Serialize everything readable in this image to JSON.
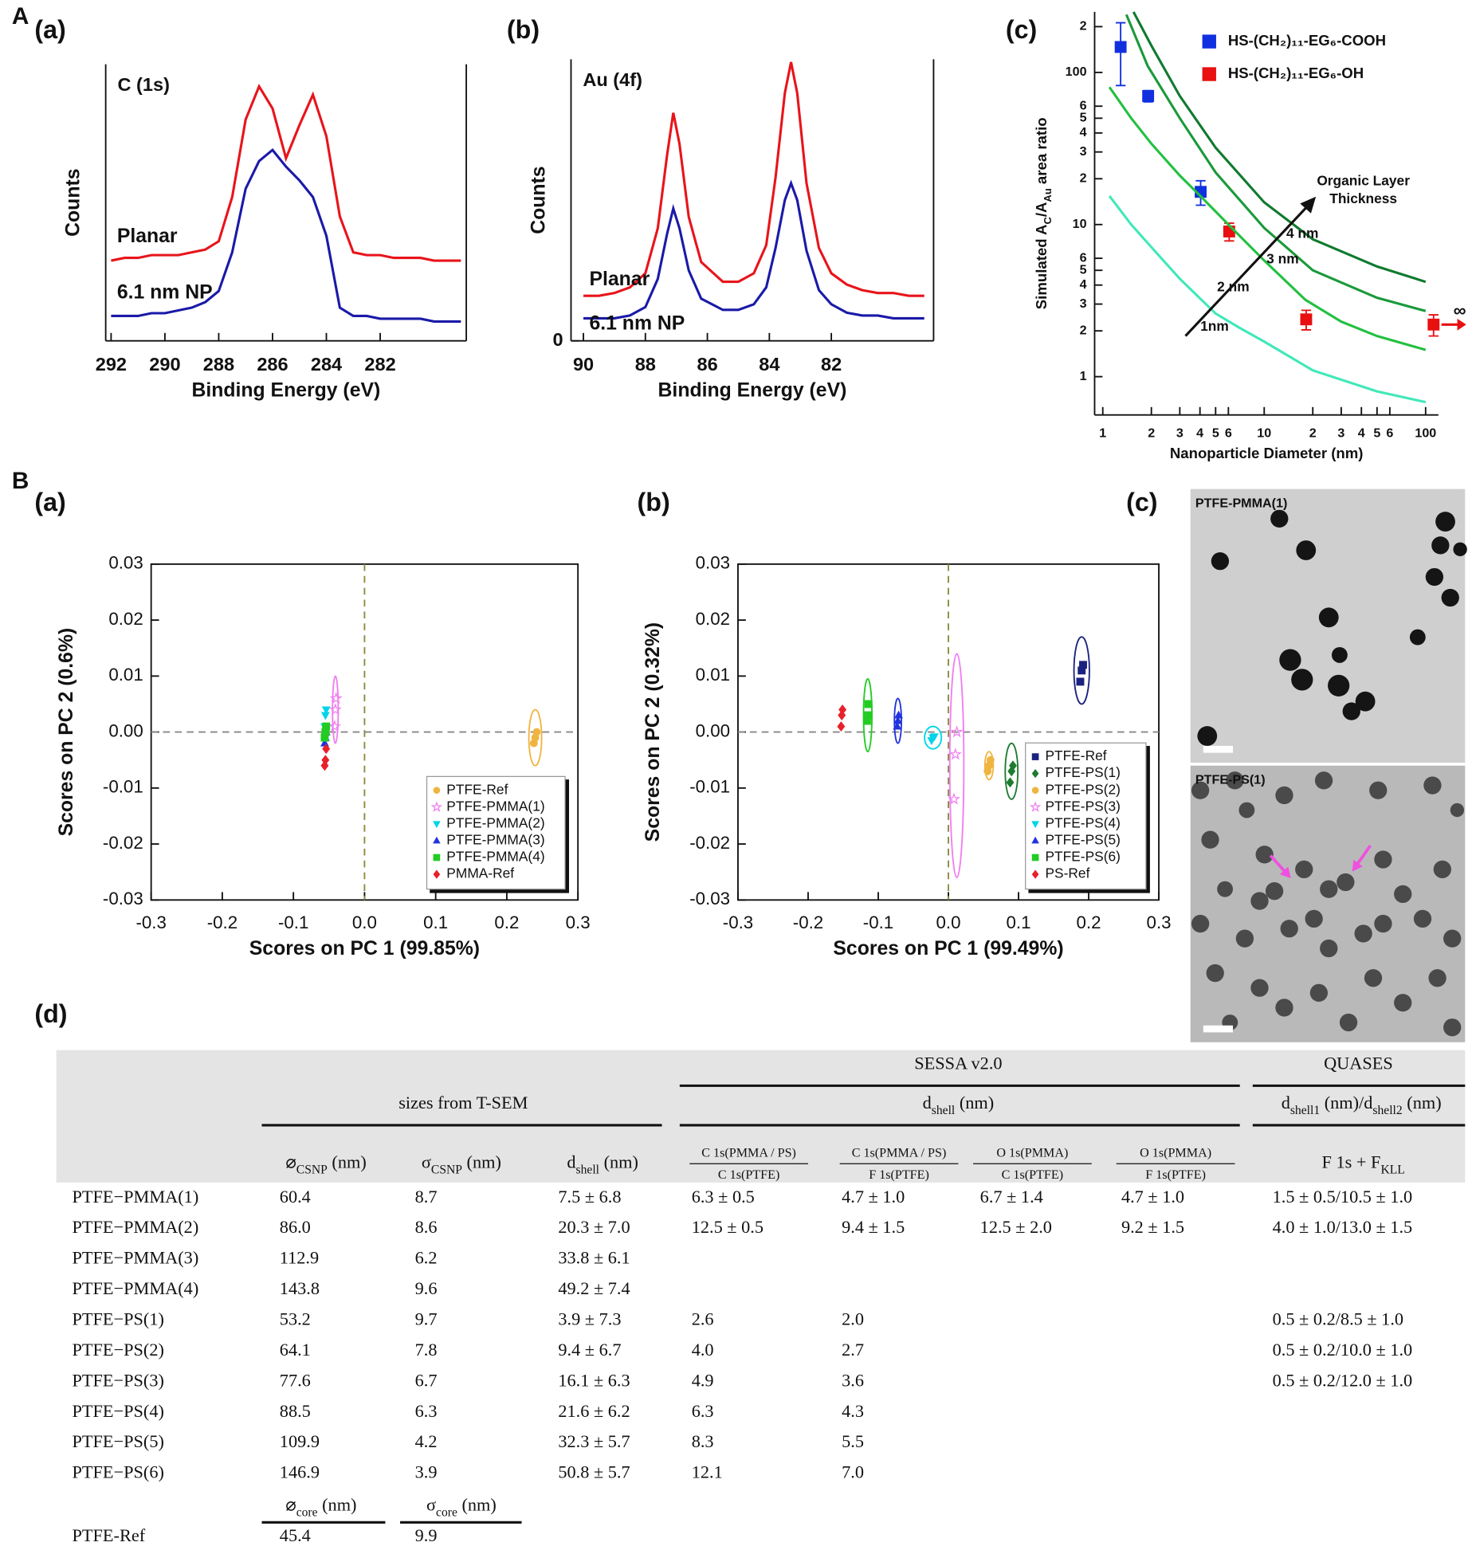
{
  "panel_labels": [
    "A",
    "(a)",
    "(b)",
    "(c)",
    "B",
    "(a)",
    "(b)",
    "(c)",
    "(d)"
  ],
  "chart_data": [
    {
      "type": "line",
      "title": "C (1s)",
      "xlabel": "Binding Energy (eV)",
      "ylabel": "Counts",
      "xlim": [
        292.2,
        278.8
      ],
      "xticks": [
        292,
        290,
        288,
        286,
        284,
        282
      ],
      "ylim": [
        0,
        100
      ],
      "legend": "inline",
      "series": [
        {
          "name": "Planar",
          "color": "#e8141b",
          "x": [
            292,
            291.5,
            291,
            290.5,
            290,
            289.5,
            289,
            288.5,
            288,
            287.5,
            287,
            286.5,
            286,
            285.5,
            285,
            284.5,
            284,
            283.5,
            283,
            282.5,
            282,
            281.5,
            281,
            280.5,
            280,
            279.5,
            279
          ],
          "values": [
            29,
            30,
            30,
            31,
            31,
            31,
            32,
            33,
            36,
            52,
            80,
            92,
            84,
            66,
            78,
            89,
            74,
            45,
            32,
            31,
            31,
            30,
            30,
            30,
            29,
            29,
            29
          ]
        },
        {
          "name": "6.1 nm NP",
          "color": "#1a1aa8",
          "x": [
            292,
            291.5,
            291,
            290.5,
            290,
            289.5,
            289,
            288.5,
            288,
            287.5,
            287,
            286.5,
            286,
            285.5,
            285,
            284.5,
            284,
            283.5,
            283,
            282.5,
            282,
            281.5,
            281,
            280.5,
            280,
            279.5,
            279
          ],
          "values": [
            9,
            9,
            9,
            10,
            10,
            11,
            12,
            14,
            18,
            32,
            55,
            65,
            69,
            63,
            58,
            52,
            38,
            12,
            9,
            9,
            8,
            8,
            8,
            8,
            7,
            7,
            7
          ]
        }
      ]
    },
    {
      "type": "line",
      "title": "Au (4f)",
      "xlabel": "Binding Energy (eV)",
      "ylabel": "Counts",
      "xlim": [
        90.4,
        78.7
      ],
      "xticks": [
        90,
        88,
        86,
        84,
        82
      ],
      "ylim": [
        0,
        100
      ],
      "yticks": [
        0
      ],
      "legend": "inline",
      "series": [
        {
          "name": "Planar",
          "color": "#e8141b",
          "x": [
            90,
            89.5,
            89,
            88.5,
            88,
            87.6,
            87.3,
            87.1,
            86.9,
            86.6,
            86.2,
            85.5,
            85,
            84.5,
            84.1,
            83.8,
            83.5,
            83.3,
            83.1,
            82.8,
            82.4,
            82,
            81.5,
            81,
            80.5,
            80,
            79.5,
            79
          ],
          "values": [
            16,
            16,
            17,
            19,
            24,
            40,
            66,
            81,
            70,
            44,
            28,
            21,
            21,
            24,
            34,
            58,
            88,
            99,
            88,
            56,
            33,
            24,
            20,
            18,
            17,
            17,
            16,
            16
          ]
        },
        {
          "name": "6.1 nm NP",
          "color": "#1a1aa8",
          "x": [
            90,
            89.5,
            89,
            88.5,
            88,
            87.6,
            87.3,
            87.1,
            86.9,
            86.6,
            86.2,
            85.5,
            85,
            84.5,
            84.1,
            83.8,
            83.5,
            83.3,
            83.1,
            82.8,
            82.4,
            82,
            81.5,
            81,
            80.5,
            80,
            79.5,
            79
          ],
          "values": [
            8,
            8,
            8,
            9,
            12,
            22,
            38,
            47,
            40,
            25,
            15,
            11,
            11,
            13,
            19,
            33,
            50,
            56,
            50,
            32,
            18,
            13,
            10,
            9,
            9,
            8,
            8,
            8
          ]
        }
      ]
    },
    {
      "type": "scatter",
      "xscale": "log",
      "yscale": "log",
      "xlabel": "Nanoparticle Diameter (nm)",
      "ylabel": [
        "Simulated A",
        "C",
        "/A",
        "Au",
        " area ratio"
      ],
      "xlim": [
        0.89,
        120
      ],
      "xticks": [
        1,
        2,
        3,
        4,
        5,
        6,
        10,
        {
          "value": 20,
          "label": "2"
        },
        {
          "value": 30,
          "label": "3"
        },
        {
          "value": 40,
          "label": "4"
        },
        {
          "value": 50,
          "label": "5"
        },
        {
          "value": 60,
          "label": "6"
        },
        100
      ],
      "ylim": [
        0.56,
        250
      ],
      "yticks": [
        1,
        2,
        3,
        4,
        5,
        6,
        10,
        {
          "value": 20,
          "label": "2"
        },
        {
          "value": 30,
          "label": "3"
        },
        {
          "value": 40,
          "label": "4"
        },
        {
          "value": 50,
          "label": "5"
        },
        {
          "value": 60,
          "label": "6"
        },
        100,
        {
          "value": 200,
          "label": "2"
        }
      ],
      "legend": "upper center",
      "annotation_lines": [
        "Organic Layer",
        "Thickness"
      ],
      "infinity_note": "∞",
      "series": [
        {
          "name": "HS-(CH₂)₁₁-EG₆-COOH",
          "color": "#1030e0",
          "mark": "square",
          "x": [
            1.29,
            1.91,
            4.04
          ],
          "values": [
            147,
            70,
            16.4
          ],
          "errors": [
            65,
            6,
            3
          ]
        },
        {
          "name": "HS-(CH₂)₁₁-EG₆-OH",
          "color": "#e81010",
          "mark": "square",
          "x": [
            6.07,
            18.2,
            112
          ],
          "values": [
            9.0,
            2.38,
            2.2
          ],
          "errors": [
            1.2,
            0.35,
            0.35
          ]
        },
        {
          "name": "1nm",
          "color": "#40e8b8",
          "mark": "line",
          "x": [
            1.1,
            1.5,
            2,
            3,
            5,
            7,
            10,
            20,
            50,
            100
          ],
          "values": [
            15.4,
            10,
            7.1,
            4.4,
            2.6,
            2.1,
            1.7,
            1.1,
            0.8,
            0.68
          ]
        },
        {
          "name": "2 nm",
          "color": "#22c040",
          "mark": "line",
          "x": [
            1.1,
            1.5,
            2,
            3,
            4,
            6,
            10,
            18,
            30,
            50,
            100
          ],
          "values": [
            80,
            50,
            34,
            21,
            15.5,
            10,
            5.8,
            3.2,
            2.3,
            1.85,
            1.5
          ]
        },
        {
          "name": "3 nm",
          "color": "#1a9a3a",
          "mark": "line",
          "x": [
            1.4,
            1.9,
            3,
            5,
            10,
            20,
            50,
            100
          ],
          "values": [
            240,
            110,
            50,
            22,
            9.5,
            5,
            3.3,
            2.7
          ]
        },
        {
          "name": "4 nm",
          "color": "#0f7a2e",
          "mark": "line",
          "x": [
            1.55,
            2,
            3,
            5,
            10,
            20,
            50,
            100
          ],
          "values": [
            250,
            150,
            70,
            32,
            14,
            8,
            5.3,
            4.2
          ]
        }
      ]
    },
    {
      "type": "scatter",
      "xlabel": "Scores on PC 1 (99.85%)",
      "ylabel": "Scores on PC 2 (0.6%)",
      "xlim": [
        -0.3,
        0.3
      ],
      "xticks": [
        -0.3,
        -0.2,
        -0.1,
        {
          "value": 0,
          "label": "0.0"
        },
        0.1,
        0.2,
        0.3
      ],
      "ylim": [
        -0.03,
        0.03
      ],
      "yticks": [
        -0.03,
        -0.02,
        -0.01,
        {
          "value": 0,
          "label": "0.00"
        },
        0.01,
        0.02,
        0.03
      ],
      "zero_lines": true,
      "legend": "lower right",
      "series": [
        {
          "name": "PTFE-Ref",
          "color": "#f0b540",
          "mark": "circle",
          "x": [
            0.238,
            0.24,
            0.242
          ],
          "values": [
            -0.002,
            -0.001,
            0.0
          ],
          "ellipse": [
            0.24,
            -0.001,
            0.009,
            0.005
          ]
        },
        {
          "name": "PTFE-PMMA(1)",
          "color": "#f07ef0",
          "mark": "star",
          "x": [
            -0.042,
            -0.041,
            -0.04
          ],
          "values": [
            0.001,
            0.004,
            0.006
          ],
          "ellipse": [
            -0.041,
            0.004,
            0.004,
            0.006
          ]
        },
        {
          "name": "PTFE-PMMA(2)",
          "color": "#00d4e8",
          "mark": "tri-down",
          "x": [
            -0.056,
            -0.055,
            -0.054
          ],
          "values": [
            0.001,
            0.003,
            0.004
          ]
        },
        {
          "name": "PTFE-PMMA(3)",
          "color": "#2233dd",
          "mark": "tri-up",
          "x": [
            -0.056,
            -0.055,
            -0.054
          ],
          "values": [
            -0.002,
            -0.001,
            0.0
          ]
        },
        {
          "name": "PTFE-PMMA(4)",
          "color": "#22cc22",
          "mark": "square",
          "x": [
            -0.056,
            -0.055,
            -0.054
          ],
          "values": [
            -0.001,
            0.0,
            0.001
          ]
        },
        {
          "name": "PMMA-Ref",
          "color": "#e8202a",
          "mark": "diamond",
          "x": [
            -0.056,
            -0.055,
            -0.054
          ],
          "values": [
            -0.006,
            -0.005,
            -0.003
          ]
        }
      ]
    },
    {
      "type": "scatter",
      "xlabel": "Scores on PC 1 (99.49%)",
      "ylabel": "Scores on PC 2 (0.32%)",
      "xlim": [
        -0.3,
        0.3
      ],
      "xticks": [
        -0.3,
        -0.2,
        -0.1,
        {
          "value": 0,
          "label": "0.0"
        },
        0.1,
        0.2,
        0.3
      ],
      "ylim": [
        -0.03,
        0.03
      ],
      "yticks": [
        -0.03,
        -0.02,
        -0.01,
        {
          "value": 0,
          "label": "0.00"
        },
        0.01,
        0.02,
        0.03
      ],
      "zero_lines": true,
      "legend": "lower right",
      "series": [
        {
          "name": "PTFE-Ref",
          "color": "#1a237e",
          "mark": "square",
          "x": [
            0.188,
            0.19,
            0.192
          ],
          "values": [
            0.009,
            0.011,
            0.012
          ],
          "ellipse": [
            0.19,
            0.011,
            0.011,
            0.006
          ]
        },
        {
          "name": "PTFE-PS(1)",
          "color": "#1e7b30",
          "mark": "diamond",
          "x": [
            0.088,
            0.09,
            0.092
          ],
          "values": [
            -0.009,
            -0.007,
            -0.006
          ],
          "ellipse": [
            0.09,
            -0.007,
            0.009,
            0.005
          ]
        },
        {
          "name": "PTFE-PS(2)",
          "color": "#f0b540",
          "mark": "circle",
          "x": [
            0.056,
            0.058,
            0.06
          ],
          "values": [
            -0.007,
            -0.006,
            -0.005
          ],
          "ellipse": [
            0.058,
            -0.006,
            0.006,
            0.0025
          ]
        },
        {
          "name": "PTFE-PS(3)",
          "color": "#f07ef0",
          "mark": "star",
          "x": [
            0.008,
            0.01,
            0.012
          ],
          "values": [
            -0.012,
            -0.004,
            0.0
          ],
          "ellipse": [
            0.012,
            -0.006,
            0.01,
            0.02
          ]
        },
        {
          "name": "PTFE-PS(4)",
          "color": "#00d4e8",
          "mark": "tri-down",
          "x": [
            -0.024,
            -0.022,
            -0.02
          ],
          "values": [
            -0.0015,
            -0.001,
            -0.0008
          ],
          "ellipse": [
            -0.022,
            -0.001,
            0.012,
            0.002
          ]
        },
        {
          "name": "PTFE-PS(5)",
          "color": "#2233dd",
          "mark": "tri-up",
          "x": [
            -0.073,
            -0.072,
            -0.071
          ],
          "values": [
            0.001,
            0.002,
            0.003
          ],
          "ellipse": [
            -0.072,
            0.002,
            0.005,
            0.004
          ]
        },
        {
          "name": "PTFE-PS(6)",
          "color": "#22cc22",
          "mark": "square",
          "x": [
            -0.116,
            -0.115,
            -0.114
          ],
          "values": [
            0.002,
            0.003,
            0.005
          ],
          "ellipse": [
            -0.115,
            0.003,
            0.006,
            0.0065
          ]
        },
        {
          "name": "PS-Ref",
          "color": "#e8202a",
          "mark": "diamond",
          "x": [
            -0.153,
            -0.152,
            -0.151
          ],
          "values": [
            0.001,
            0.003,
            0.004
          ]
        }
      ]
    }
  ],
  "images": [
    {
      "label": "PTFE-PMMA(1)"
    },
    {
      "label": "PTFE-PS(1)"
    }
  ],
  "table": {
    "groups": [
      "SESSA v2.0",
      "QUASES"
    ],
    "subgroups": [
      "sizes from T-SEM",
      [
        "d",
        "shell",
        " (nm)"
      ],
      [
        "d",
        "shell1",
        " (nm)/d",
        "shell2",
        " (nm)"
      ]
    ],
    "columns": [
      [
        "⌀",
        "CSNP",
        " (nm)"
      ],
      [
        "σ",
        "CSNP",
        " (nm)"
      ],
      [
        "d",
        "shell",
        " (nm)"
      ],
      {
        "num": "C 1s(PMMA / PS)",
        "den": "C 1s(PTFE)"
      },
      {
        "num": "C 1s(PMMA / PS)",
        "den": "F 1s(PTFE)"
      },
      {
        "num": "O 1s(PMMA)",
        "den": "C 1s(PTFE)"
      },
      {
        "num": "O 1s(PMMA)",
        "den": "F 1s(PTFE)"
      },
      [
        "F 1s + F",
        "KLL"
      ]
    ],
    "rows": [
      [
        "PTFE−PMMA(1)",
        "60.4",
        "8.7",
        "7.5 ± 6.8",
        "6.3 ± 0.5",
        "4.7 ± 1.0",
        "6.7 ± 1.4",
        "4.7 ± 1.0",
        "1.5 ± 0.5/10.5 ± 1.0"
      ],
      [
        "PTFE−PMMA(2)",
        "86.0",
        "8.6",
        "20.3 ± 7.0",
        "12.5 ± 0.5",
        "9.4 ± 1.5",
        "12.5 ± 2.0",
        "9.2 ± 1.5",
        "4.0 ± 1.0/13.0 ± 1.5"
      ],
      [
        "PTFE−PMMA(3)",
        "112.9",
        "6.2",
        "33.8 ± 6.1"
      ],
      [
        "PTFE−PMMA(4)",
        "143.8",
        "9.6",
        "49.2 ± 7.4"
      ],
      [
        "PTFE−PS(1)",
        "53.2",
        "9.7",
        "3.9 ± 7.3",
        "2.6",
        "2.0",
        null,
        null,
        "0.5 ± 0.2/8.5 ± 1.0"
      ],
      [
        "PTFE−PS(2)",
        "64.1",
        "7.8",
        "9.4 ± 6.7",
        "4.0",
        "2.7",
        null,
        null,
        "0.5 ± 0.2/10.0 ± 1.0"
      ],
      [
        "PTFE−PS(3)",
        "77.6",
        "6.7",
        "16.1 ± 6.3",
        "4.9",
        "3.6",
        null,
        null,
        "0.5 ± 0.2/12.0 ± 1.0"
      ],
      [
        "PTFE−PS(4)",
        "88.5",
        "6.3",
        "21.6 ± 6.2",
        "6.3",
        "4.3"
      ],
      [
        "PTFE−PS(5)",
        "109.9",
        "4.2",
        "32.3 ± 5.7",
        "8.3",
        "5.5"
      ],
      [
        "PTFE−PS(6)",
        "146.9",
        "3.9",
        "50.8 ± 5.7",
        "12.1",
        "7.0"
      ]
    ],
    "core_columns": [
      [
        "⌀",
        "core",
        " (nm)"
      ],
      [
        "σ",
        "core",
        " (nm)"
      ]
    ],
    "ref_row": [
      "PTFE-Ref",
      "45.4",
      "9.9"
    ]
  }
}
